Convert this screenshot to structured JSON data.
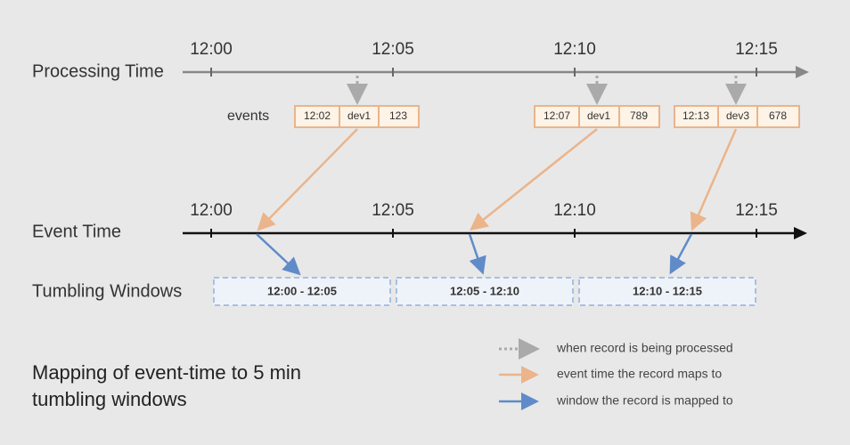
{
  "processing_axis": {
    "label": "Processing Time",
    "ticks": [
      "12:00",
      "12:05",
      "12:10",
      "12:15"
    ]
  },
  "events": {
    "label": "events",
    "records": [
      [
        "12:02",
        "dev1",
        "123"
      ],
      [
        "12:07",
        "dev1",
        "789"
      ],
      [
        "12:13",
        "dev3",
        "678"
      ]
    ]
  },
  "event_axis": {
    "label": "Event Time",
    "ticks": [
      "12:00",
      "12:05",
      "12:10",
      "12:15"
    ]
  },
  "windows": {
    "label": "Tumbling Windows",
    "items": [
      "12:00 - 12:05",
      "12:05 - 12:10",
      "12:10 - 12:15"
    ]
  },
  "legend": [
    "when record is being processed",
    "event time the record maps to",
    "window the record is mapped to"
  ],
  "caption": [
    "Mapping of event-time to 5 min",
    "tumbling windows"
  ]
}
